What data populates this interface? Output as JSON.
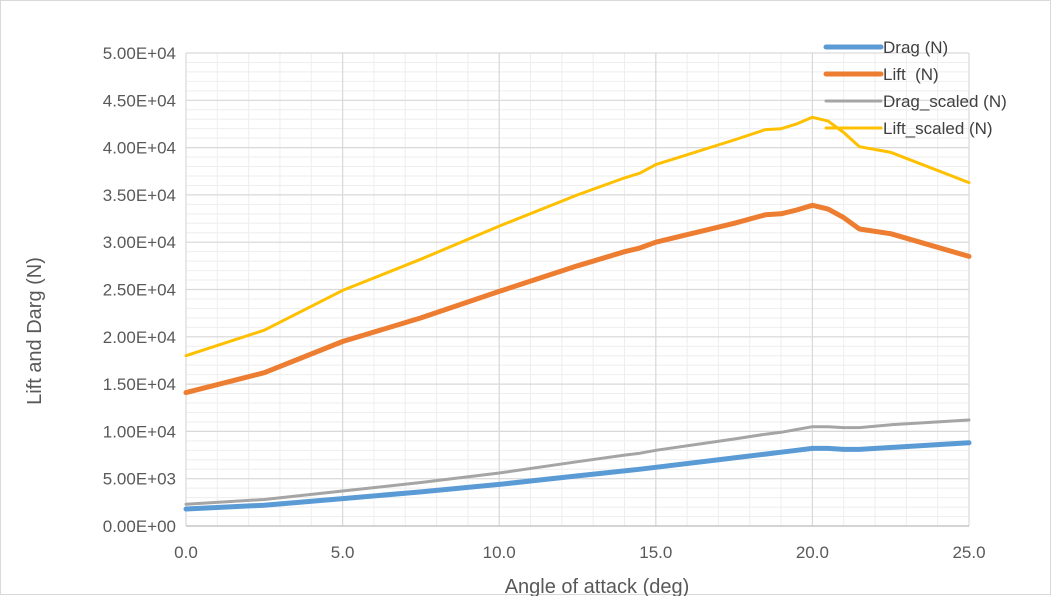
{
  "chart_data": {
    "type": "line",
    "xlabel": "Angle of attack (deg)",
    "ylabel": "Lift and Darg (N)",
    "xlim": [
      0,
      25
    ],
    "ylim": [
      0,
      50000
    ],
    "x_ticks": [
      "0.0",
      "5.0",
      "10.0",
      "15.0",
      "20.0",
      "25.0"
    ],
    "y_ticks": [
      "0.00E+00",
      "5.00E+03",
      "1.00E+04",
      "1.50E+04",
      "2.00E+04",
      "2.50E+04",
      "3.00E+04",
      "3.50E+04",
      "4.00E+04",
      "4.50E+04",
      "5.00E+04"
    ],
    "grid": {
      "major": true,
      "minor": true
    },
    "legend_position": "top-right",
    "series": [
      {
        "name": "Drag (N)",
        "color": "#5b9bd5",
        "width": 5,
        "x": [
          0,
          2.5,
          5,
          7.5,
          10,
          12.5,
          14.5,
          15,
          17.5,
          18.5,
          19,
          19.5,
          20,
          20.5,
          21,
          21.5,
          22.5,
          25
        ],
        "y": [
          1800,
          2200,
          2900,
          3600,
          4400,
          5300,
          6000,
          6200,
          7200,
          7600,
          7800,
          8000,
          8200,
          8200,
          8100,
          8100,
          8300,
          8800
        ]
      },
      {
        "name": "Lift  (N)",
        "color": "#ed7d31",
        "width": 5,
        "x": [
          0,
          2.5,
          5,
          7.5,
          10,
          12.5,
          14,
          14.5,
          15,
          17.5,
          18.5,
          19,
          19.5,
          20,
          20.5,
          21,
          21.5,
          22.5,
          25
        ],
        "y": [
          14100,
          16200,
          19500,
          22000,
          24800,
          27500,
          29000,
          29400,
          30000,
          32000,
          32900,
          33000,
          33400,
          33900,
          33500,
          32600,
          31400,
          30900,
          28500
        ]
      },
      {
        "name": "Drag_scaled (N)",
        "color": "#a5a5a5",
        "width": 3,
        "x": [
          0,
          2.5,
          5,
          7.5,
          10,
          12.5,
          14,
          14.5,
          15,
          17.5,
          18.5,
          19,
          19.5,
          20,
          20.5,
          21,
          21.5,
          22.5,
          25
        ],
        "y": [
          2300,
          2800,
          3700,
          4600,
          5600,
          6800,
          7500,
          7700,
          8000,
          9200,
          9700,
          9900,
          10200,
          10500,
          10500,
          10400,
          10400,
          10700,
          11200
        ]
      },
      {
        "name": "Lift_scaled (N)",
        "color": "#ffc000",
        "width": 3,
        "x": [
          0,
          2.5,
          5,
          7.5,
          10,
          12.5,
          14,
          14.5,
          15,
          17.5,
          18.5,
          19,
          19.5,
          20,
          20.5,
          21,
          21.5,
          22.5,
          25
        ],
        "y": [
          18000,
          20700,
          24900,
          28200,
          31700,
          35000,
          36800,
          37300,
          38200,
          40800,
          41900,
          42000,
          42500,
          43200,
          42800,
          41600,
          40100,
          39500,
          36300
        ]
      }
    ]
  }
}
